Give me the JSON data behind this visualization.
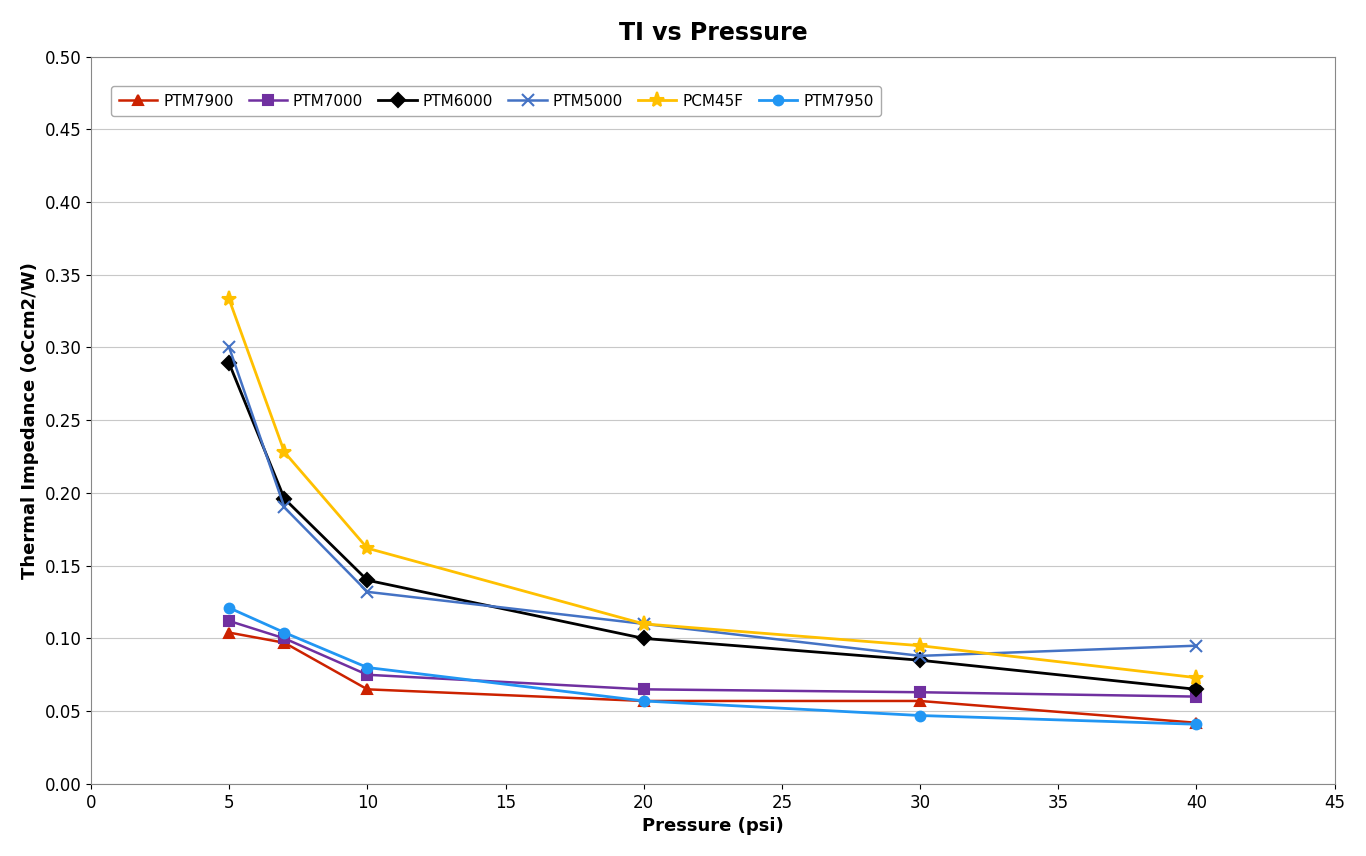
{
  "title": "TI vs Pressure",
  "xlabel": "Pressure (psi)",
  "ylabel": "Thermal Impedance (oCcm2/W)",
  "xlim": [
    0,
    45
  ],
  "ylim": [
    0.0,
    0.5
  ],
  "yticks": [
    0.0,
    0.05,
    0.1,
    0.15,
    0.2,
    0.25,
    0.3,
    0.35,
    0.4,
    0.45,
    0.5
  ],
  "xticks": [
    0,
    5,
    10,
    15,
    20,
    25,
    30,
    35,
    40,
    45
  ],
  "pressure": [
    5,
    7,
    10,
    20,
    30,
    40
  ],
  "series": [
    {
      "label": "PTM7900",
      "color": "#cc2200",
      "marker": "^",
      "markersize": 7,
      "linewidth": 1.8,
      "values": [
        0.104,
        0.097,
        0.065,
        0.057,
        0.057,
        0.042
      ]
    },
    {
      "label": "PTM7000",
      "color": "#7030a0",
      "marker": "s",
      "markersize": 7,
      "linewidth": 1.8,
      "values": [
        0.112,
        0.1,
        0.075,
        0.065,
        0.063,
        0.06
      ]
    },
    {
      "label": "PTM6000",
      "color": "#000000",
      "marker": "D",
      "markersize": 7,
      "linewidth": 2.0,
      "values": [
        0.289,
        0.196,
        0.14,
        0.1,
        0.085,
        0.065
      ]
    },
    {
      "label": "PTM5000",
      "color": "#4472c4",
      "marker": "x",
      "markersize": 9,
      "linewidth": 1.8,
      "values": [
        0.3,
        0.19,
        0.132,
        0.11,
        0.088,
        0.095
      ]
    },
    {
      "label": "PCM45F",
      "color": "#ffc000",
      "marker": "*",
      "markersize": 11,
      "linewidth": 2.0,
      "values": [
        0.333,
        0.228,
        0.162,
        0.11,
        0.095,
        0.073
      ]
    },
    {
      "label": "PTM7950",
      "color": "#2196F3",
      "marker": "o",
      "markersize": 7,
      "linewidth": 2.0,
      "values": [
        0.121,
        0.104,
        0.08,
        0.057,
        0.047,
        0.041
      ]
    }
  ],
  "background_color": "#ffffff",
  "grid_color": "#c8c8c8",
  "title_fontsize": 17,
  "label_fontsize": 13,
  "tick_fontsize": 12,
  "legend_fontsize": 11
}
